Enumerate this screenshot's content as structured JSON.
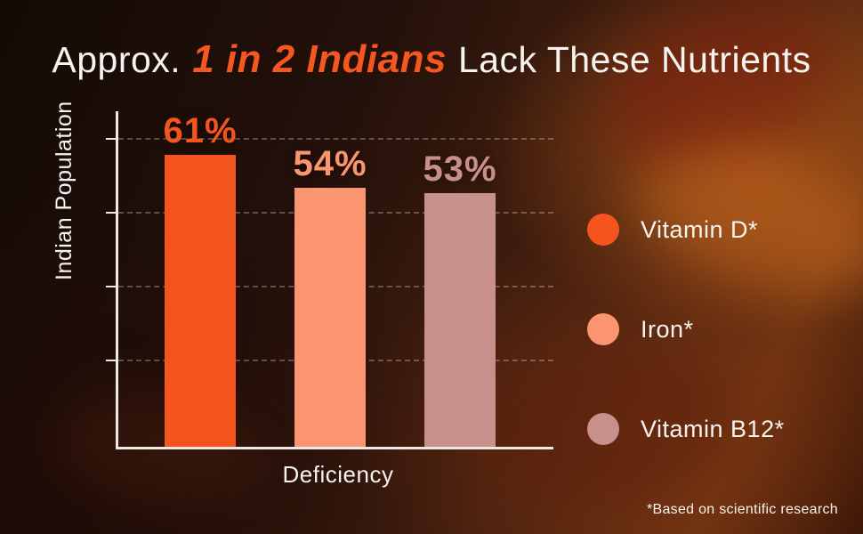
{
  "title": {
    "prefix": "Approx.",
    "highlight": "1 in 2 Indians",
    "suffix": "Lack These Nutrients"
  },
  "chart_data": {
    "type": "bar",
    "categories": [
      "Vitamin D*",
      "Iron*",
      "Vitamin B12*"
    ],
    "values": [
      61,
      54,
      53
    ],
    "value_labels": [
      "61%",
      "54%",
      "53%"
    ],
    "colors": [
      "#F4551E",
      "#FB9470",
      "#C7908A"
    ],
    "title": "Approx. 1 in 2 Indians Lack These Nutrients",
    "xlabel": "Deficiency",
    "ylabel": "Indian Population",
    "ylim": [
      0,
      70
    ],
    "grid": "dashed-horizontal",
    "legend_position": "right"
  },
  "legend": {
    "items": [
      {
        "label": "Vitamin D*",
        "color": "#F4551E"
      },
      {
        "label": "Iron*",
        "color": "#FB9470"
      },
      {
        "label": "Vitamin B12*",
        "color": "#C7908A"
      }
    ]
  },
  "footnote": "*Based on scientific research"
}
